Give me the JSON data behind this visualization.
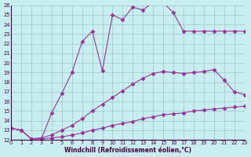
{
  "xlabel": "Windchill (Refroidissement éolien,°C)",
  "background_color": "#c8eef0",
  "grid_color": "#9ecdd0",
  "line_color": "#993399",
  "xmin": 0,
  "xmax": 23,
  "ymin": 12,
  "ymax": 26,
  "lines": [
    {
      "x": [
        0,
        1,
        2,
        3,
        4,
        5,
        6,
        7,
        8,
        9,
        10,
        11,
        12,
        13,
        14,
        15,
        16,
        17,
        18,
        19,
        20,
        21,
        22,
        23
      ],
      "y": [
        13.2,
        13.0,
        12.1,
        12.1,
        12.2,
        12.3,
        12.5,
        12.7,
        13.0,
        13.2,
        13.5,
        13.7,
        13.9,
        14.2,
        14.4,
        14.6,
        14.7,
        14.8,
        15.0,
        15.1,
        15.2,
        15.3,
        15.4,
        15.5
      ]
    },
    {
      "x": [
        0,
        1,
        2,
        3,
        4,
        5,
        6,
        7,
        8,
        9,
        10,
        11,
        12,
        13,
        14,
        15,
        16,
        17,
        18,
        19,
        20,
        21,
        22,
        23
      ],
      "y": [
        13.2,
        13.0,
        12.1,
        12.2,
        12.5,
        13.0,
        13.5,
        14.2,
        15.0,
        15.7,
        16.4,
        17.1,
        17.8,
        18.4,
        18.9,
        19.1,
        19.0,
        18.9,
        19.0,
        19.1,
        19.3,
        18.2,
        17.0,
        16.7
      ]
    },
    {
      "x": [
        0,
        1,
        2,
        3,
        4,
        5,
        6,
        7,
        8,
        9,
        10,
        11,
        12,
        13,
        14,
        15,
        16,
        17,
        18,
        19,
        20,
        21,
        22,
        23
      ],
      "y": [
        13.2,
        13.0,
        12.1,
        12.1,
        14.8,
        16.8,
        19.0,
        22.2,
        23.3,
        19.2,
        25.0,
        24.5,
        25.8,
        25.5,
        26.3,
        26.3,
        25.2,
        23.3,
        23.3,
        23.3,
        23.3,
        23.3,
        23.3,
        23.3
      ]
    }
  ]
}
